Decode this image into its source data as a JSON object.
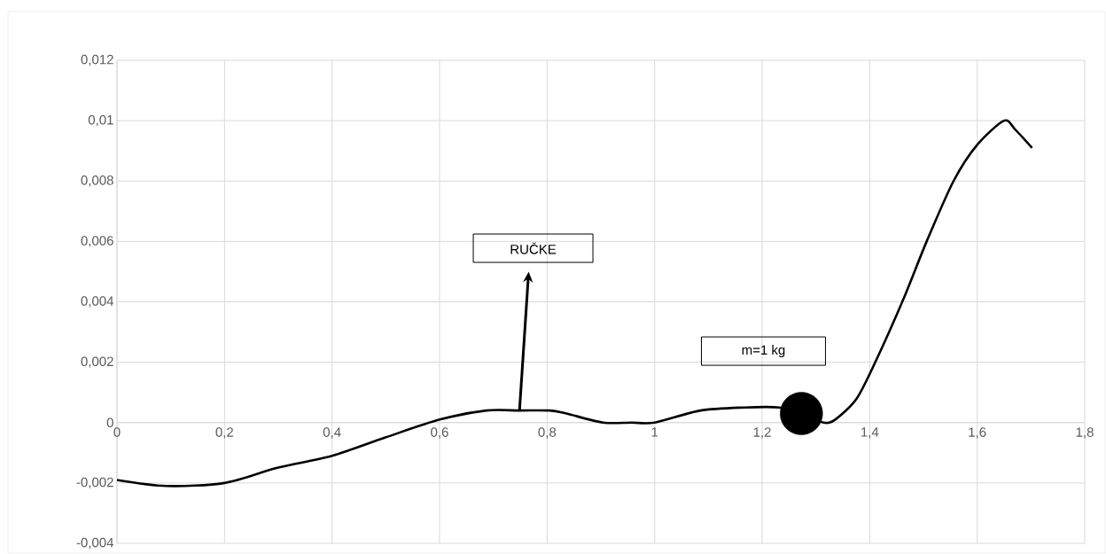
{
  "chart_data": {
    "type": "line",
    "xlim": [
      0,
      1.8
    ],
    "ylim": [
      -0.004,
      0.012
    ],
    "xticks": [
      0,
      {
        "value": 0.2,
        "label": "0,2"
      },
      {
        "value": 0.4,
        "label": "0,4"
      },
      {
        "value": 0.6,
        "label": "0,6"
      },
      {
        "value": 0.8,
        "label": "0,8"
      },
      1,
      {
        "value": 1.2,
        "label": "1,2"
      },
      {
        "value": 1.4,
        "label": "1,4"
      },
      {
        "value": 1.6,
        "label": "1,6"
      },
      {
        "value": 1.8,
        "label": "1,8"
      }
    ],
    "yticks": [
      {
        "value": -0.004,
        "label": "-0,004"
      },
      {
        "value": -0.002,
        "label": "-0,002"
      },
      0,
      {
        "value": 0.002,
        "label": "0,002"
      },
      {
        "value": 0.004,
        "label": "0,004"
      },
      {
        "value": 0.006,
        "label": "0,006"
      },
      {
        "value": 0.008,
        "label": "0,008"
      },
      {
        "value": 0.01,
        "label": "0,01"
      },
      {
        "value": 0.012,
        "label": "0,012"
      }
    ],
    "grid": true,
    "series": [
      {
        "color": "#000000",
        "marker": "none",
        "x": [
          0,
          0.092,
          0.2,
          0.298,
          0.4,
          0.498,
          0.6,
          0.687,
          0.749,
          0.805,
          0.836,
          0.904,
          0.957,
          1.0,
          1.085,
          1.167,
          1.232,
          1.273,
          1.314,
          1.336,
          1.376,
          1.413,
          1.463,
          1.506,
          1.556,
          1.6,
          1.65,
          1.671,
          1.702
        ],
        "values": [
          -0.0019,
          -0.0021,
          -0.002,
          -0.0015,
          -0.0011,
          -0.0005,
          0.0001,
          0.0004,
          0.0004,
          0.0004,
          0.0003,
          0,
          0,
          0,
          0.0004,
          0.0005,
          0.0005,
          0.0003,
          0,
          0.0001,
          0.0008,
          0.0021,
          0.0041,
          0.006,
          0.008,
          0.0092,
          0.01,
          0.0097,
          0.0091
        ]
      },
      {
        "type": "scatter",
        "color": "#000000",
        "marker": "circle",
        "x": [
          1.273
        ],
        "values": [
          0.0003
        ]
      }
    ],
    "annotations": [
      "RUČKE",
      "m=1 kg"
    ]
  }
}
